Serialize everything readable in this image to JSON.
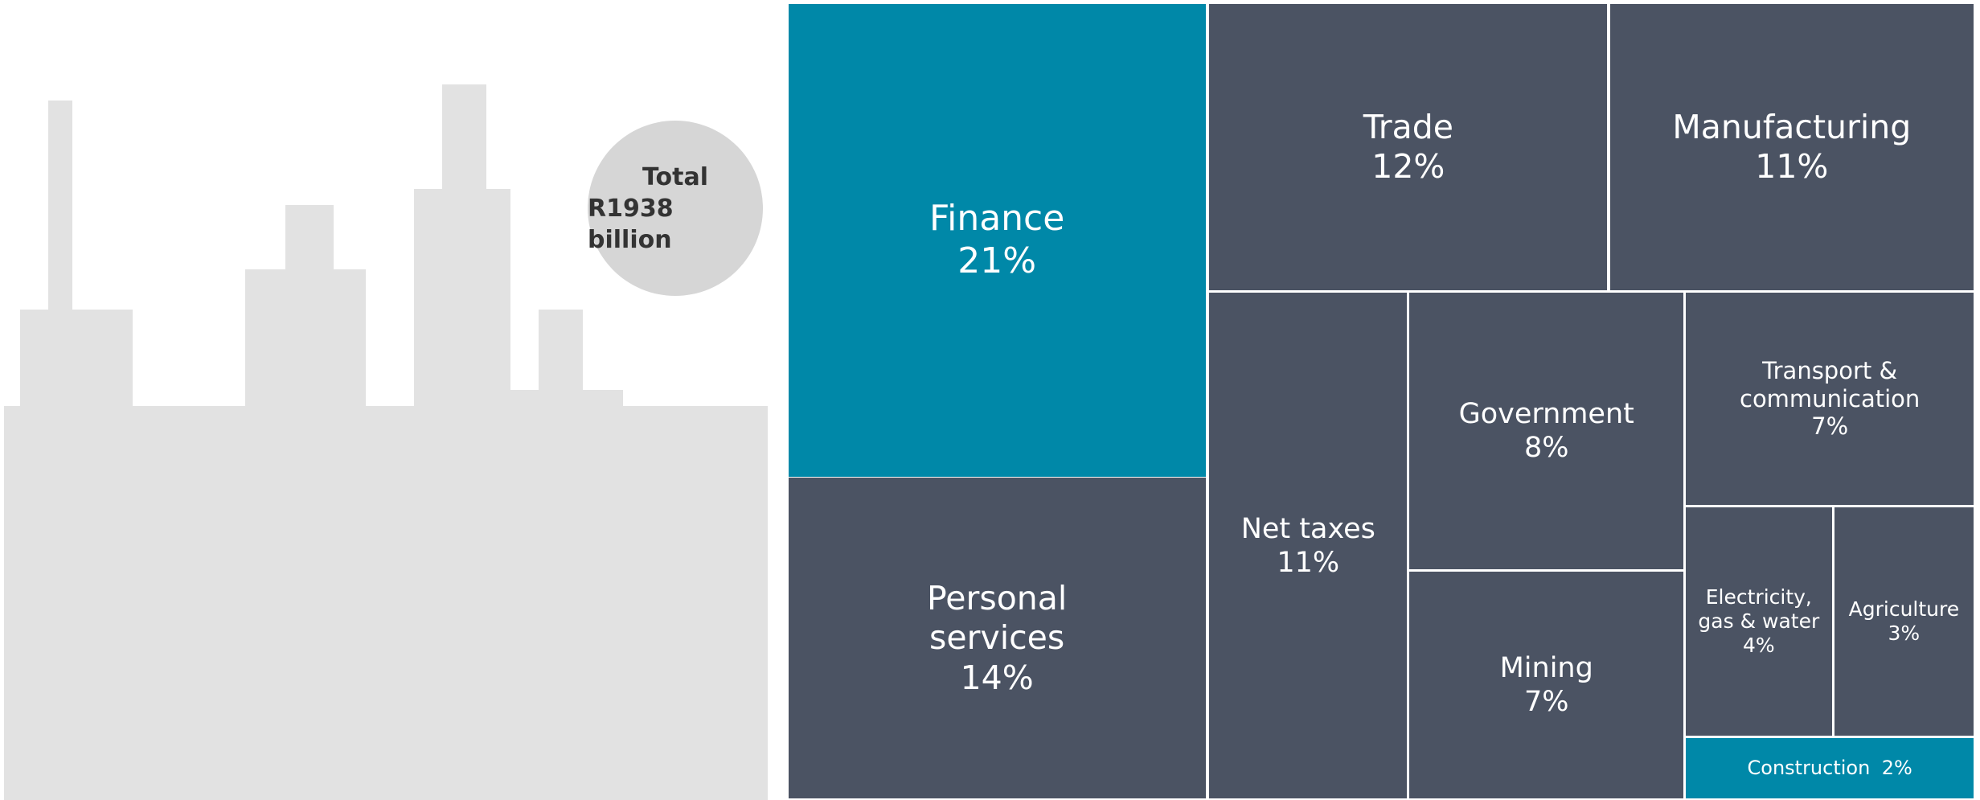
{
  "chart_data": {
    "type": "treemap",
    "annotation": {
      "title": "Total",
      "text": "R1938 billion"
    },
    "categories": [
      "Finance",
      "Personal services",
      "Trade",
      "Manufacturing",
      "Net taxes",
      "Government",
      "Mining",
      "Transport & communication",
      "Electricity, gas & water",
      "Agriculture",
      "Construction"
    ],
    "values": [
      21,
      14,
      12,
      11,
      11,
      8,
      7,
      7,
      4,
      3,
      2
    ],
    "value_labels": [
      "21%",
      "14%",
      "12%",
      "11%",
      "11%",
      "8%",
      "7%",
      "7%",
      "4%",
      "3%",
      "2%"
    ],
    "colors": [
      "#0088a8",
      "#4b5363",
      "#4b5363",
      "#4b5363",
      "#4b5363",
      "#4b5363",
      "#4b5363",
      "#4b5363",
      "#4b5363",
      "#4b5363",
      "#0088a8"
    ]
  }
}
